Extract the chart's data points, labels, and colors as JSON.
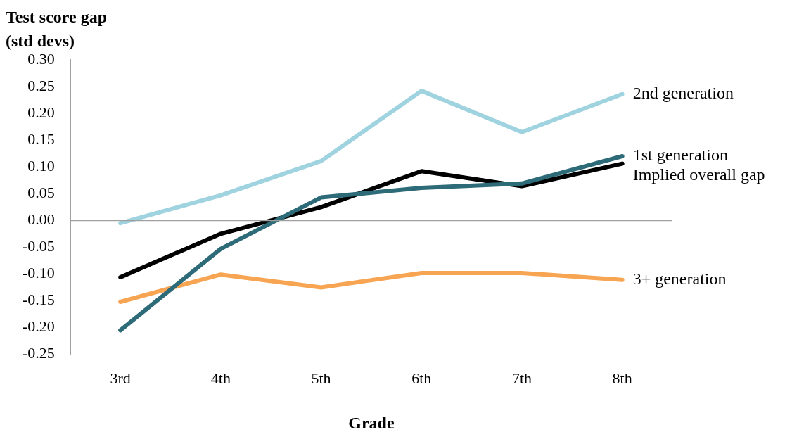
{
  "chart_data": {
    "type": "line",
    "ylabel": "Test score gap\n(std devs)",
    "xlabel": "Grade",
    "categories": [
      "3rd",
      "4th",
      "5th",
      "6th",
      "7th",
      "8th"
    ],
    "series": [
      {
        "name": "2nd generation",
        "color": "#9fd3e0",
        "values": [
          -0.005,
          0.047,
          0.111,
          0.242,
          0.165,
          0.236
        ]
      },
      {
        "name": "1st generation",
        "color": "#2e6b78",
        "values": [
          -0.205,
          -0.053,
          0.043,
          0.061,
          0.069,
          0.12
        ]
      },
      {
        "name": "Implied overall gap",
        "color": "#000000",
        "values": [
          -0.106,
          -0.025,
          0.025,
          0.092,
          0.064,
          0.106
        ]
      },
      {
        "name": "3+ generation",
        "color": "#f7a552",
        "values": [
          -0.152,
          -0.101,
          -0.125,
          -0.098,
          -0.098,
          -0.111
        ]
      }
    ],
    "ylim": [
      -0.25,
      0.3
    ],
    "yticks": [
      {
        "value": -0.25,
        "label": "-0.25"
      },
      {
        "value": -0.2,
        "label": "-0.20"
      },
      {
        "value": -0.15,
        "label": "-0.15"
      },
      {
        "value": -0.1,
        "label": "-0.10"
      },
      {
        "value": -0.05,
        "label": "-0.05"
      },
      {
        "value": 0,
        "label": "0.00"
      },
      {
        "value": 0.05,
        "label": "0.05"
      },
      {
        "value": 0.1,
        "label": "0.10"
      },
      {
        "value": 0.15,
        "label": "0.15"
      },
      {
        "value": 0.2,
        "label": "0.20"
      },
      {
        "value": 0.25,
        "label": "0.25"
      },
      {
        "value": 0.3,
        "label": "0.30"
      }
    ],
    "ref_lines": [
      {
        "axis": "y",
        "value": 0,
        "color": "#a0a0a0"
      }
    ],
    "grid": false,
    "legend": false,
    "marker": "none",
    "line_style": "solid"
  }
}
